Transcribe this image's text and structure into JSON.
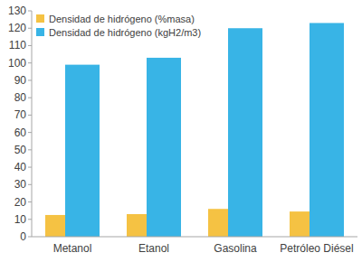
{
  "chart_data": {
    "type": "bar",
    "categories": [
      "Metanol",
      "Etanol",
      "Gasolina",
      "Petróleo Diésel"
    ],
    "series": [
      {
        "name": "Densidad de hidrógeno (%masa)",
        "color": "#f5c243",
        "values": [
          12.5,
          13,
          16,
          14.5
        ]
      },
      {
        "name": "Densidad de hidrógeno (kgH2/m3)",
        "color": "#38b4e6",
        "values": [
          99,
          103,
          120,
          123
        ]
      }
    ],
    "ylim": [
      0,
      130
    ],
    "yticks": [
      0,
      10,
      20,
      30,
      40,
      50,
      60,
      70,
      80,
      90,
      100,
      110,
      120,
      130
    ],
    "grid": false,
    "legend": "upper left"
  }
}
